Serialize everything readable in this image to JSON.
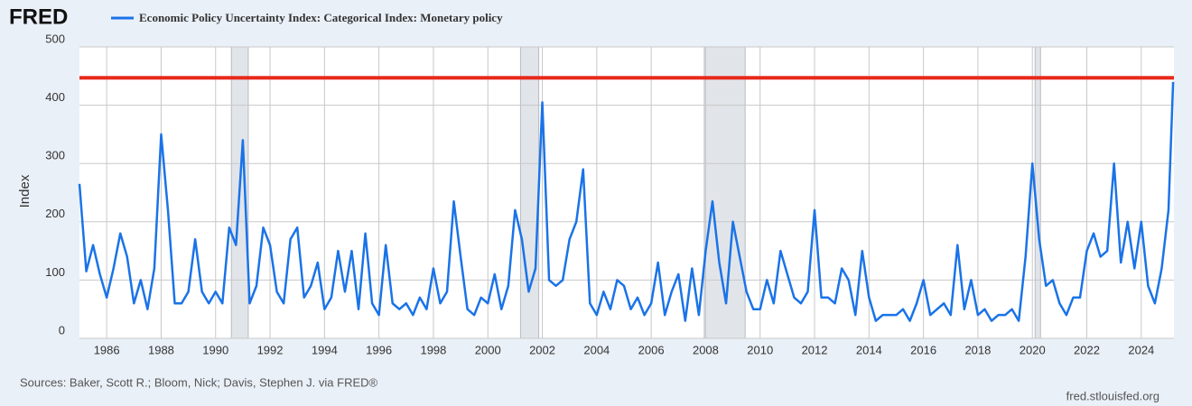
{
  "chart_data": {
    "type": "line",
    "logo": "FRED",
    "ylabel": "Index",
    "source": "Sources: Baker, Scott R.; Bloom, Nick; Davis, Stephen J. via FRED®",
    "site": "fred.stlouisfed.org",
    "xlim": [
      1985,
      2025.2
    ],
    "ylim": [
      0,
      500
    ],
    "xticks": [
      1986,
      1988,
      1990,
      1992,
      1994,
      1996,
      1998,
      2000,
      2002,
      2004,
      2006,
      2008,
      2010,
      2012,
      2014,
      2016,
      2018,
      2020,
      2022,
      2024
    ],
    "yticks": [
      0,
      100,
      200,
      300,
      400,
      500
    ],
    "grid": true,
    "recessions": [
      [
        1990.58,
        1991.2
      ],
      [
        2001.2,
        2001.87
      ],
      [
        2007.95,
        2009.45
      ],
      [
        2020.1,
        2020.3
      ]
    ],
    "recession_color": "#e1e5ea",
    "hline": 447,
    "hline_color": "#e8291c",
    "x": [
      1985,
      1985.25,
      1985.5,
      1985.75,
      1986,
      1986.25,
      1986.5,
      1986.75,
      1987,
      1987.25,
      1987.5,
      1987.75,
      1988,
      1988.25,
      1988.5,
      1988.75,
      1989,
      1989.25,
      1989.5,
      1989.75,
      1990,
      1990.25,
      1990.5,
      1990.75,
      1991,
      1991.25,
      1991.5,
      1991.75,
      1992,
      1992.25,
      1992.5,
      1992.75,
      1993,
      1993.25,
      1993.5,
      1993.75,
      1994,
      1994.25,
      1994.5,
      1994.75,
      1995,
      1995.25,
      1995.5,
      1995.75,
      1996,
      1996.25,
      1996.5,
      1996.75,
      1997,
      1997.25,
      1997.5,
      1997.75,
      1998,
      1998.25,
      1998.5,
      1998.75,
      1999,
      1999.25,
      1999.5,
      1999.75,
      2000,
      2000.25,
      2000.5,
      2000.75,
      2001,
      2001.25,
      2001.5,
      2001.75,
      2002,
      2002.25,
      2002.5,
      2002.75,
      2003,
      2003.25,
      2003.5,
      2003.75,
      2004,
      2004.25,
      2004.5,
      2004.75,
      2005,
      2005.25,
      2005.5,
      2005.75,
      2006,
      2006.25,
      2006.5,
      2006.75,
      2007,
      2007.25,
      2007.5,
      2007.75,
      2008,
      2008.25,
      2008.5,
      2008.75,
      2009,
      2009.25,
      2009.5,
      2009.75,
      2010,
      2010.25,
      2010.5,
      2010.75,
      2011,
      2011.25,
      2011.5,
      2011.75,
      2012,
      2012.25,
      2012.5,
      2012.75,
      2013,
      2013.25,
      2013.5,
      2013.75,
      2014,
      2014.25,
      2014.5,
      2014.75,
      2015,
      2015.25,
      2015.5,
      2015.75,
      2016,
      2016.25,
      2016.5,
      2016.75,
      2017,
      2017.25,
      2017.5,
      2017.75,
      2018,
      2018.25,
      2018.5,
      2018.75,
      2019,
      2019.25,
      2019.5,
      2019.75,
      2020,
      2020.25,
      2020.5,
      2020.75,
      2021,
      2021.25,
      2021.5,
      2021.75,
      2022,
      2022.25,
      2022.5,
      2022.75,
      2023,
      2023.25,
      2023.5,
      2023.75,
      2024,
      2024.25,
      2024.5,
      2024.75,
      2025,
      2025.17
    ],
    "series": [
      {
        "name": "Economic Policy Uncertainty Index: Categorical Index: Monetary policy",
        "color": "#1a73e8",
        "values": [
          265,
          115,
          160,
          110,
          70,
          120,
          180,
          140,
          60,
          100,
          50,
          120,
          350,
          220,
          60,
          60,
          80,
          170,
          80,
          60,
          80,
          60,
          190,
          160,
          340,
          60,
          90,
          190,
          160,
          80,
          60,
          170,
          190,
          70,
          90,
          130,
          50,
          70,
          150,
          80,
          150,
          50,
          180,
          60,
          40,
          160,
          60,
          50,
          60,
          40,
          70,
          50,
          120,
          60,
          80,
          235,
          140,
          50,
          40,
          70,
          60,
          110,
          50,
          90,
          220,
          170,
          80,
          120,
          405,
          100,
          90,
          100,
          170,
          200,
          290,
          60,
          40,
          80,
          50,
          100,
          90,
          50,
          70,
          40,
          60,
          130,
          40,
          80,
          110,
          30,
          120,
          40,
          150,
          235,
          130,
          60,
          200,
          140,
          80,
          50,
          50,
          100,
          60,
          150,
          110,
          70,
          60,
          80,
          220,
          70,
          70,
          60,
          120,
          100,
          40,
          150,
          70,
          30,
          40,
          40,
          40,
          50,
          30,
          60,
          100,
          40,
          50,
          60,
          40,
          160,
          50,
          100,
          40,
          50,
          30,
          40,
          40,
          50,
          30,
          140,
          300,
          170,
          90,
          100,
          60,
          40,
          70,
          70,
          150,
          180,
          140,
          150,
          300,
          130,
          200,
          120,
          200,
          90,
          60,
          120,
          220,
          440
        ]
      }
    ]
  }
}
